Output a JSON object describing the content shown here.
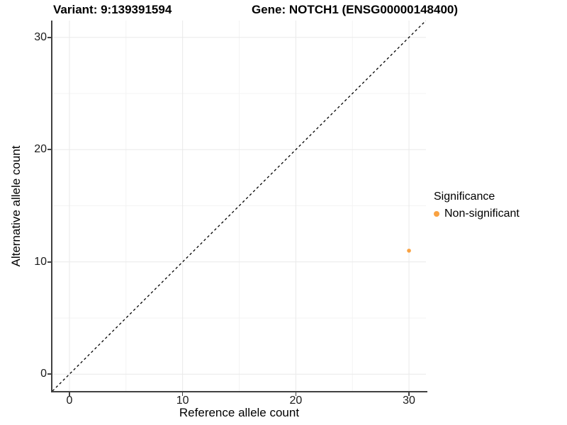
{
  "title": {
    "variant": "Variant: 9:139391594",
    "gene": "Gene: NOTCH1 (ENSG00000148400)"
  },
  "chart_data": {
    "type": "scatter",
    "title": "Variant: 9:139391594        Gene: NOTCH1 (ENSG00000148400)",
    "xlabel": "Reference allele count",
    "ylabel": "Alternative allele count",
    "xlim": [
      -1.5,
      31.5
    ],
    "ylim": [
      -1.5,
      31.5
    ],
    "x_ticks": [
      0,
      10,
      20,
      30
    ],
    "y_ticks": [
      0,
      10,
      20,
      30
    ],
    "x_minor_ticks": [
      5,
      15,
      25
    ],
    "y_minor_ticks": [
      5,
      15,
      25
    ],
    "grid": true,
    "identity_line": {
      "description": "y = x diagonal reference line spanning the panel",
      "style": "dashed",
      "color": "#000000"
    },
    "series": [
      {
        "name": "Non-significant",
        "color": "#F9A242",
        "points": [
          {
            "x": 30,
            "y": 11
          }
        ]
      }
    ],
    "legend": {
      "title": "Significance",
      "position": "right",
      "items": [
        {
          "label": "Non-significant",
          "color": "#F9A242"
        }
      ]
    }
  },
  "colors": {
    "background": "#FFFFFF",
    "axis_line": "#414141",
    "axis_text": "#1A1A1A",
    "grid_major": "#E9E9E9",
    "grid_minor": "#F3F3F3",
    "point_orange": "#F9A242",
    "identity_line": "#000000"
  }
}
